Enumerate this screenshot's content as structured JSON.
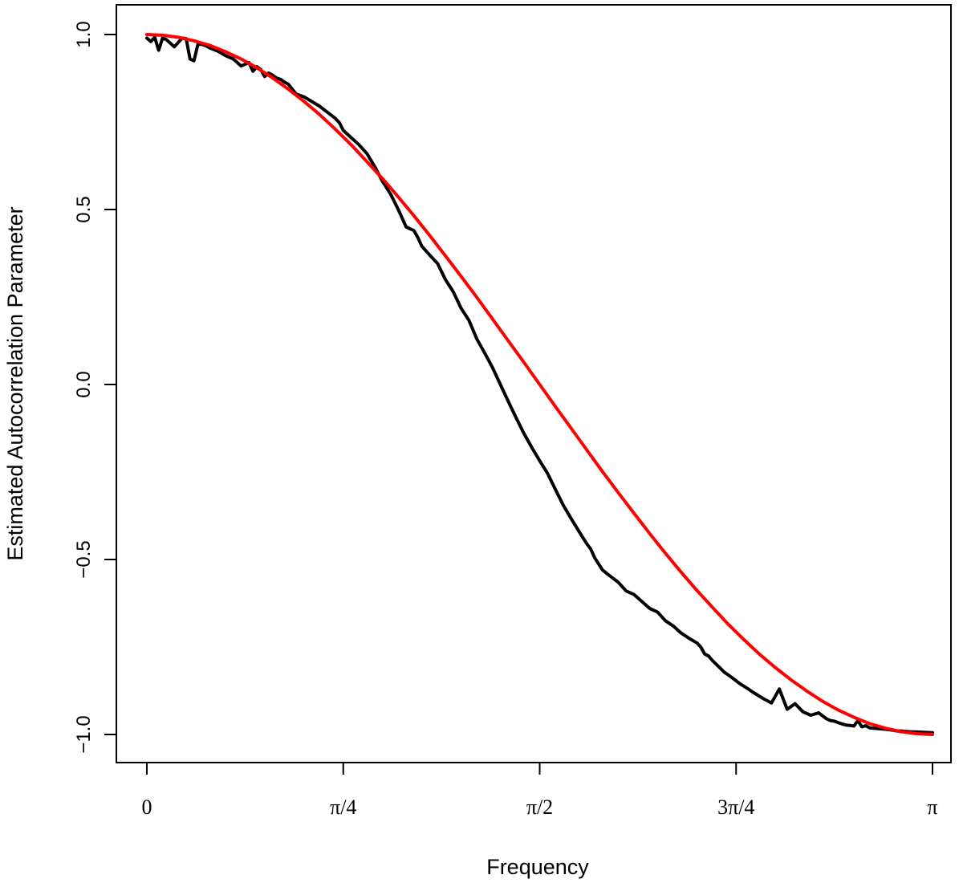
{
  "chart_data": {
    "type": "line",
    "title": "",
    "xlabel": "Frequency",
    "ylabel": "Estimated Autocorrelation Parameter",
    "xlim": [
      0,
      3.1416
    ],
    "ylim": [
      -1.0,
      1.0
    ],
    "grid": false,
    "x_ticks": [
      {
        "value": 0,
        "label": "0"
      },
      {
        "value": 0.7854,
        "label": "π/4"
      },
      {
        "value": 1.5708,
        "label": "π/2"
      },
      {
        "value": 2.3562,
        "label": "3π/4"
      },
      {
        "value": 3.1416,
        "label": "π"
      }
    ],
    "y_ticks": [
      {
        "value": 1.0,
        "label": "1.0"
      },
      {
        "value": 0.5,
        "label": "0.5"
      },
      {
        "value": 0.0,
        "label": "0.0"
      },
      {
        "value": -0.5,
        "label": "−0.5"
      },
      {
        "value": -1.0,
        "label": "−1.0"
      }
    ],
    "series": [
      {
        "color": "#000000",
        "x": [
          0.0,
          0.0157,
          0.0314,
          0.0471,
          0.0628,
          0.0785,
          0.1099,
          0.1414,
          0.1571,
          0.1728,
          0.1885,
          0.2042,
          0.2199,
          0.2356,
          0.2513,
          0.2827,
          0.3142,
          0.3456,
          0.377,
          0.4084,
          0.4241,
          0.4398,
          0.4555,
          0.4712,
          0.4869,
          0.5027,
          0.5184,
          0.5341,
          0.5498,
          0.5655,
          0.5969,
          0.6283,
          0.6912,
          0.754,
          0.7697,
          0.7854,
          0.8482,
          0.8796,
          0.9111,
          0.9425,
          0.9739,
          1.0053,
          1.0367,
          1.0681,
          1.0838,
          1.0996,
          1.131,
          1.1624,
          1.1938,
          1.2252,
          1.2566,
          1.2881,
          1.3195,
          1.3509,
          1.3823,
          1.4137,
          1.4451,
          1.4765,
          1.508,
          1.5394,
          1.5708,
          1.6022,
          1.6336,
          1.665,
          1.6965,
          1.7279,
          1.7593,
          1.775,
          1.7907,
          1.8221,
          1.8535,
          1.885,
          1.9164,
          1.9478,
          1.9792,
          2.0106,
          2.042,
          2.0735,
          2.1049,
          2.1363,
          2.1677,
          2.1991,
          2.2148,
          2.2305,
          2.2462,
          2.2619,
          2.2777,
          2.2934,
          2.3091,
          2.3405,
          2.3719,
          2.4033,
          2.419,
          2.4347,
          2.4661,
          2.4976,
          2.529,
          2.5604,
          2.5918,
          2.6232,
          2.6546,
          2.6861,
          2.7175,
          2.7332,
          2.7489,
          2.7646,
          2.7803,
          2.796,
          2.8117,
          2.8274,
          2.8431,
          2.8588,
          2.8745,
          2.8902,
          2.9059,
          2.9216,
          2.9531,
          2.9845,
          3.0002,
          3.0159,
          3.0316,
          3.0473,
          3.0787,
          3.1102,
          3.1416
        ],
        "y": [
          0.99,
          0.98,
          0.992,
          0.955,
          0.99,
          0.985,
          0.965,
          0.99,
          0.988,
          0.93,
          0.925,
          0.972,
          0.972,
          0.968,
          0.962,
          0.953,
          0.94,
          0.93,
          0.91,
          0.92,
          0.895,
          0.908,
          0.9,
          0.88,
          0.89,
          0.884,
          0.876,
          0.872,
          0.864,
          0.858,
          0.83,
          0.822,
          0.795,
          0.76,
          0.748,
          0.726,
          0.685,
          0.66,
          0.623,
          0.58,
          0.545,
          0.5,
          0.45,
          0.44,
          0.42,
          0.395,
          0.37,
          0.346,
          0.3,
          0.265,
          0.218,
          0.183,
          0.13,
          0.09,
          0.048,
          0.0,
          -0.048,
          -0.095,
          -0.14,
          -0.18,
          -0.218,
          -0.254,
          -0.3,
          -0.345,
          -0.383,
          -0.42,
          -0.455,
          -0.47,
          -0.495,
          -0.53,
          -0.548,
          -0.565,
          -0.59,
          -0.6,
          -0.62,
          -0.64,
          -0.65,
          -0.675,
          -0.69,
          -0.71,
          -0.725,
          -0.738,
          -0.75,
          -0.77,
          -0.776,
          -0.789,
          -0.8,
          -0.811,
          -0.822,
          -0.838,
          -0.855,
          -0.869,
          -0.877,
          -0.884,
          -0.898,
          -0.91,
          -0.87,
          -0.928,
          -0.912,
          -0.935,
          -0.945,
          -0.938,
          -0.955,
          -0.96,
          -0.962,
          -0.966,
          -0.97,
          -0.973,
          -0.974,
          -0.976,
          -0.96,
          -0.978,
          -0.975,
          -0.981,
          -0.982,
          -0.983,
          -0.985,
          -0.988,
          -0.99,
          -0.99,
          -0.991,
          -0.992,
          -0.993,
          -0.994,
          -0.995
        ]
      },
      {
        "color": "#ff0000",
        "x": [
          0.0,
          0.0628,
          0.1257,
          0.1885,
          0.2513,
          0.3142,
          0.377,
          0.4398,
          0.5027,
          0.5655,
          0.6283,
          0.6912,
          0.754,
          0.8168,
          0.8796,
          0.9425,
          1.0053,
          1.0681,
          1.131,
          1.1938,
          1.2566,
          1.3195,
          1.3823,
          1.4451,
          1.508,
          1.5708,
          1.6336,
          1.6965,
          1.7593,
          1.8221,
          1.885,
          1.9478,
          2.0106,
          2.0735,
          2.1363,
          2.1991,
          2.2619,
          2.3248,
          2.3876,
          2.4504,
          2.5133,
          2.5761,
          2.6389,
          2.7018,
          2.7646,
          2.8274,
          2.8903,
          2.9531,
          3.0159,
          3.0788,
          3.1416
        ],
        "y": [
          1.0,
          0.998,
          0.992,
          0.982,
          0.969,
          0.951,
          0.93,
          0.905,
          0.876,
          0.844,
          0.809,
          0.771,
          0.729,
          0.685,
          0.637,
          0.588,
          0.536,
          0.482,
          0.426,
          0.368,
          0.309,
          0.249,
          0.187,
          0.125,
          0.063,
          0.0,
          -0.063,
          -0.125,
          -0.187,
          -0.249,
          -0.309,
          -0.368,
          -0.426,
          -0.482,
          -0.536,
          -0.588,
          -0.637,
          -0.685,
          -0.729,
          -0.771,
          -0.809,
          -0.844,
          -0.876,
          -0.905,
          -0.93,
          -0.951,
          -0.969,
          -0.982,
          -0.992,
          -0.998,
          -1.0
        ]
      }
    ]
  }
}
